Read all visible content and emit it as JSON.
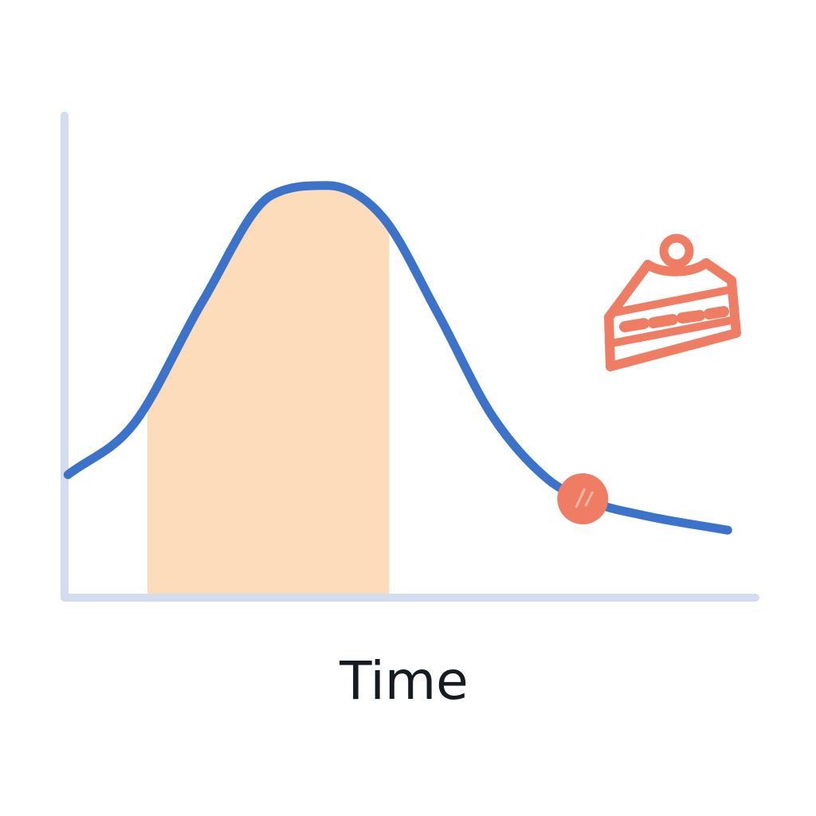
{
  "chart_data": {
    "type": "line",
    "xlabel": "Time",
    "ylabel": "",
    "title": "",
    "xlim": [
      0,
      10
    ],
    "ylim": [
      0,
      10
    ],
    "grid": false,
    "legend": "none",
    "series": [
      {
        "x": [
          0.05,
          1.0,
          2.0,
          3.0,
          3.8,
          4.6,
          5.4,
          6.2,
          7.0,
          7.6,
          8.4,
          9.6
        ],
        "values": [
          2.55,
          3.6,
          6.15,
          8.35,
          8.55,
          7.9,
          5.9,
          3.75,
          2.45,
          2.0,
          1.7,
          1.4
        ]
      }
    ],
    "highlighted_range": [
      1.2,
      4.7
    ],
    "marker_point": {
      "x": 7.5,
      "y": 2.05
    },
    "colors": {
      "axis": "#d4dcf0",
      "curve": "#3a73c9",
      "highlight_band": "#fddcbc",
      "accent": "#ef7d64",
      "text": "#151b20"
    },
    "icons": {
      "annotation": "cake-slice-icon"
    }
  }
}
